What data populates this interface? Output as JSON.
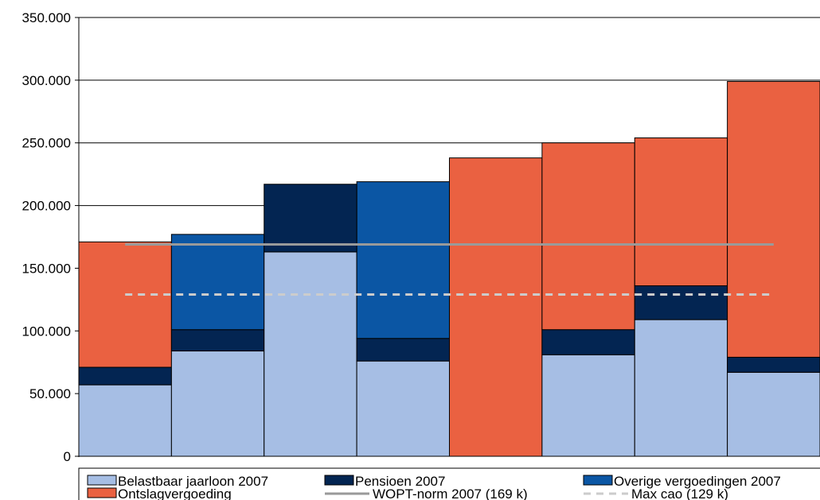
{
  "chart_data": {
    "type": "bar",
    "stacked": true,
    "grid": true,
    "legend_position": "bottom",
    "ylim": [
      0,
      350000
    ],
    "y_ticks": [
      0,
      50000,
      100000,
      150000,
      200000,
      250000,
      300000,
      350000
    ],
    "y_tick_labels": [
      "0",
      "50.000",
      "100.000",
      "150.000",
      "200.000",
      "250.000",
      "300.000",
      "350.000"
    ],
    "categories": [
      "",
      "",
      "",
      "",
      "",
      "",
      "",
      ""
    ],
    "series": [
      {
        "name": "Belastbaar jaarloon 2007",
        "color": "#a6bee4",
        "values": [
          57000,
          84000,
          163000,
          76000,
          0,
          81000,
          109000,
          67000
        ]
      },
      {
        "name": "Pensioen 2007",
        "color": "#032552",
        "values": [
          14000,
          17000,
          0,
          18000,
          0,
          20000,
          27000,
          12000
        ]
      },
      {
        "name": "Overige vergoedingen 2007",
        "color": "#0b56a4",
        "values": [
          0,
          76000,
          0,
          125000,
          0,
          0,
          0,
          0
        ]
      },
      {
        "name": "Ontslagvergoeding",
        "color": "#ea6141",
        "values": [
          100000,
          0,
          0,
          0,
          238000,
          149000,
          118000,
          220000
        ]
      }
    ],
    "extra_segments": [
      {
        "series": "Pensioen 2007",
        "color": "#032552",
        "index": 2,
        "base": 163000,
        "value": 54000
      }
    ],
    "reference_lines": [
      {
        "name": "WOPT-norm 2007 (169 k)",
        "value": 169000,
        "color": "#9a9a9a",
        "style": "solid"
      },
      {
        "name": "Max cao (129 k)",
        "value": 129000,
        "color": "#cccccc",
        "style": "dashed"
      }
    ]
  }
}
